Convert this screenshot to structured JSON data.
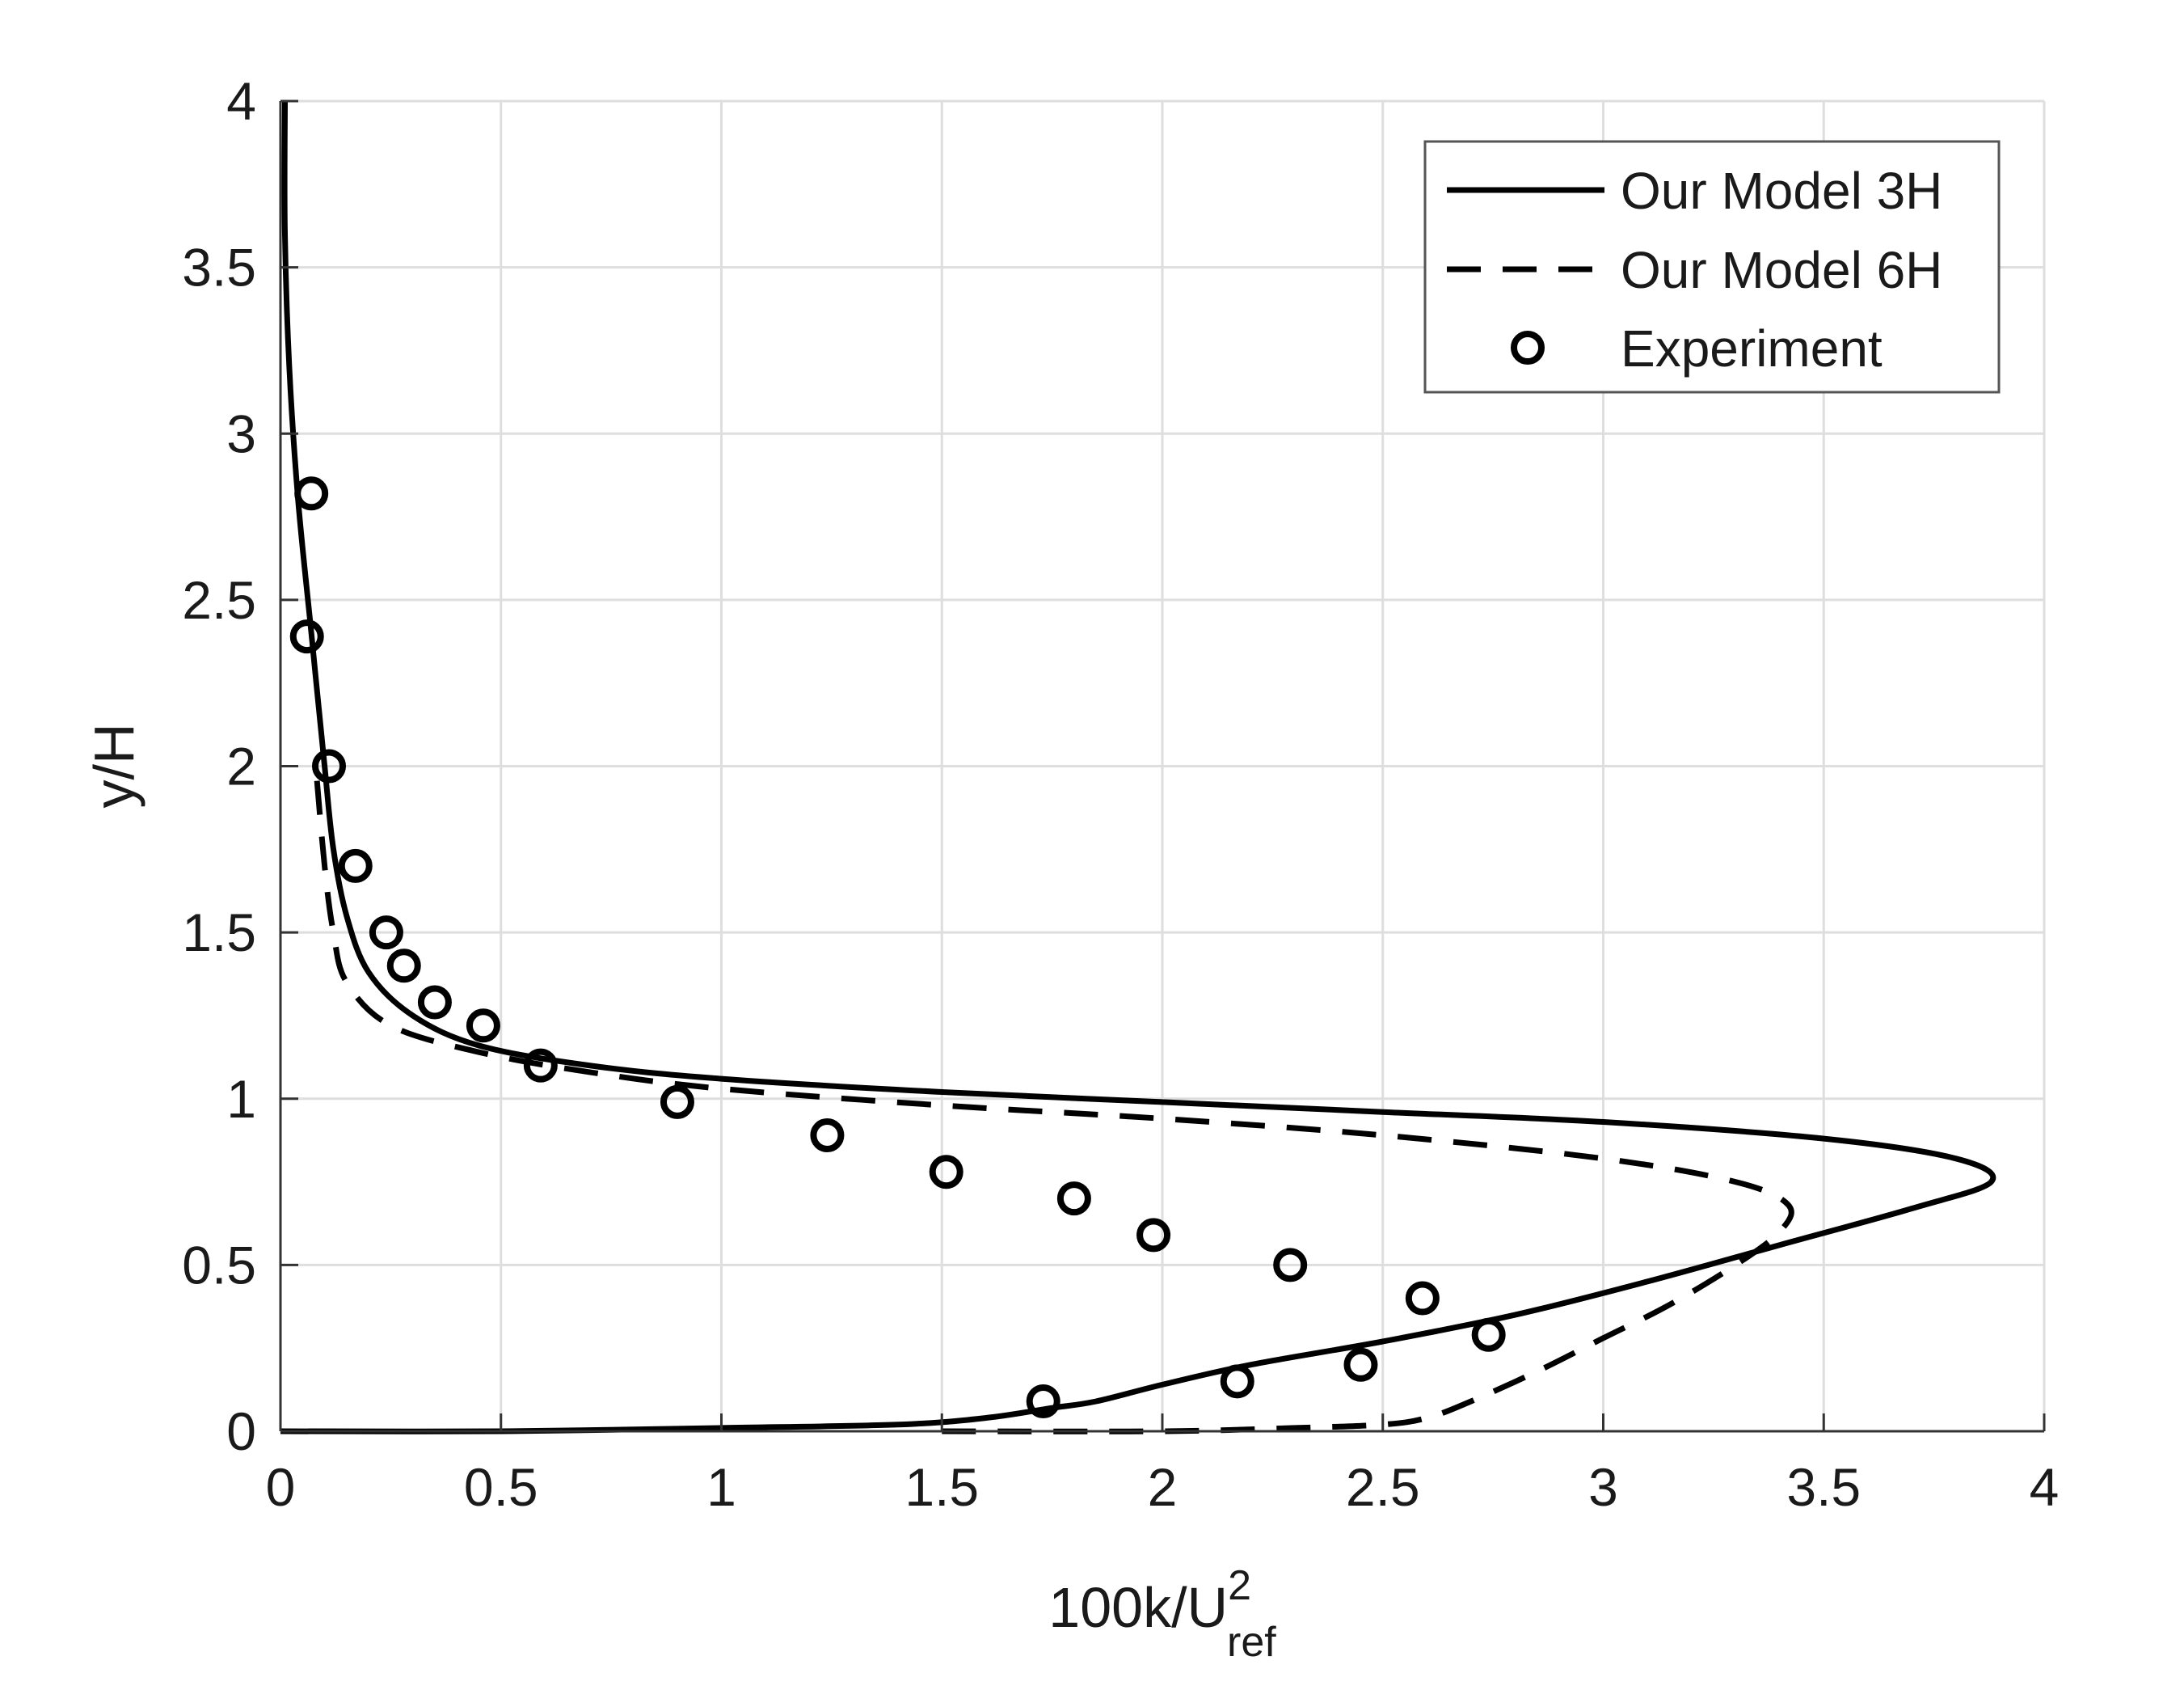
{
  "chart_data": {
    "type": "line",
    "title": "",
    "xlabel": {
      "main": "100k/U",
      "superscript": "2",
      "subscript": "ref"
    },
    "ylabel": "y/H",
    "xlim": [
      0,
      4
    ],
    "ylim": [
      0,
      4
    ],
    "xticks": [
      0,
      0.5,
      1,
      1.5,
      2,
      2.5,
      3,
      3.5,
      4
    ],
    "xtick_labels": [
      "0",
      "0.5",
      "1",
      "1.5",
      "2",
      "2.5",
      "3",
      "3.5",
      "4"
    ],
    "yticks": [
      0,
      0.5,
      1,
      1.5,
      2,
      2.5,
      3,
      3.5,
      4
    ],
    "ytick_labels": [
      "0",
      "0.5",
      "1",
      "1.5",
      "2",
      "2.5",
      "3",
      "3.5",
      "4"
    ],
    "grid": true,
    "legend_position": "top-right",
    "series": [
      {
        "name": "Our Model 3H",
        "style": "solid",
        "color": "#000000",
        "points": [
          [
            0.0,
            0.0
          ],
          [
            0.5,
            0.0
          ],
          [
            1.0,
            0.01
          ],
          [
            1.4,
            0.02
          ],
          [
            1.6,
            0.04
          ],
          [
            1.75,
            0.07
          ],
          [
            1.85,
            0.09
          ],
          [
            2.0,
            0.14
          ],
          [
            2.2,
            0.2
          ],
          [
            2.5,
            0.27
          ],
          [
            2.8,
            0.35
          ],
          [
            3.1,
            0.45
          ],
          [
            3.4,
            0.56
          ],
          [
            3.7,
            0.67
          ],
          [
            3.88,
            0.75
          ],
          [
            3.8,
            0.82
          ],
          [
            3.5,
            0.88
          ],
          [
            3.0,
            0.93
          ],
          [
            2.5,
            0.96
          ],
          [
            2.0,
            0.99
          ],
          [
            1.5,
            1.02
          ],
          [
            1.0,
            1.06
          ],
          [
            0.7,
            1.1
          ],
          [
            0.45,
            1.16
          ],
          [
            0.3,
            1.25
          ],
          [
            0.2,
            1.38
          ],
          [
            0.15,
            1.55
          ],
          [
            0.12,
            1.75
          ],
          [
            0.1,
            2.0
          ],
          [
            0.07,
            2.4
          ],
          [
            0.04,
            2.8
          ],
          [
            0.02,
            3.2
          ],
          [
            0.01,
            3.6
          ],
          [
            0.01,
            4.0
          ]
        ]
      },
      {
        "name": "Our Model 6H",
        "style": "dashed",
        "color": "#000000",
        "points": [
          [
            1.5,
            0.0
          ],
          [
            2.0,
            0.0
          ],
          [
            2.3,
            0.01
          ],
          [
            2.5,
            0.02
          ],
          [
            2.6,
            0.04
          ],
          [
            2.7,
            0.09
          ],
          [
            2.85,
            0.18
          ],
          [
            3.0,
            0.28
          ],
          [
            3.15,
            0.38
          ],
          [
            3.3,
            0.5
          ],
          [
            3.4,
            0.6
          ],
          [
            3.42,
            0.68
          ],
          [
            3.3,
            0.75
          ],
          [
            3.0,
            0.82
          ],
          [
            2.5,
            0.89
          ],
          [
            2.0,
            0.94
          ],
          [
            1.5,
            0.98
          ],
          [
            1.0,
            1.03
          ],
          [
            0.7,
            1.08
          ],
          [
            0.45,
            1.14
          ],
          [
            0.25,
            1.22
          ],
          [
            0.15,
            1.35
          ],
          [
            0.12,
            1.5
          ],
          [
            0.1,
            1.7
          ],
          [
            0.08,
            2.0
          ]
        ]
      },
      {
        "name": "Experiment",
        "style": "markers",
        "marker": "circle",
        "color": "#000000",
        "points": [
          [
            0.07,
            2.82
          ],
          [
            0.06,
            2.39
          ],
          [
            0.11,
            2.0
          ],
          [
            0.17,
            1.7
          ],
          [
            0.24,
            1.5
          ],
          [
            0.28,
            1.4
          ],
          [
            0.35,
            1.29
          ],
          [
            0.46,
            1.22
          ],
          [
            0.59,
            1.1
          ],
          [
            0.9,
            0.99
          ],
          [
            1.24,
            0.89
          ],
          [
            1.51,
            0.78
          ],
          [
            1.8,
            0.7
          ],
          [
            1.98,
            0.59
          ],
          [
            2.29,
            0.5
          ],
          [
            2.59,
            0.4
          ],
          [
            2.74,
            0.29
          ],
          [
            2.45,
            0.2
          ],
          [
            2.17,
            0.15
          ],
          [
            1.73,
            0.09
          ]
        ]
      }
    ]
  }
}
